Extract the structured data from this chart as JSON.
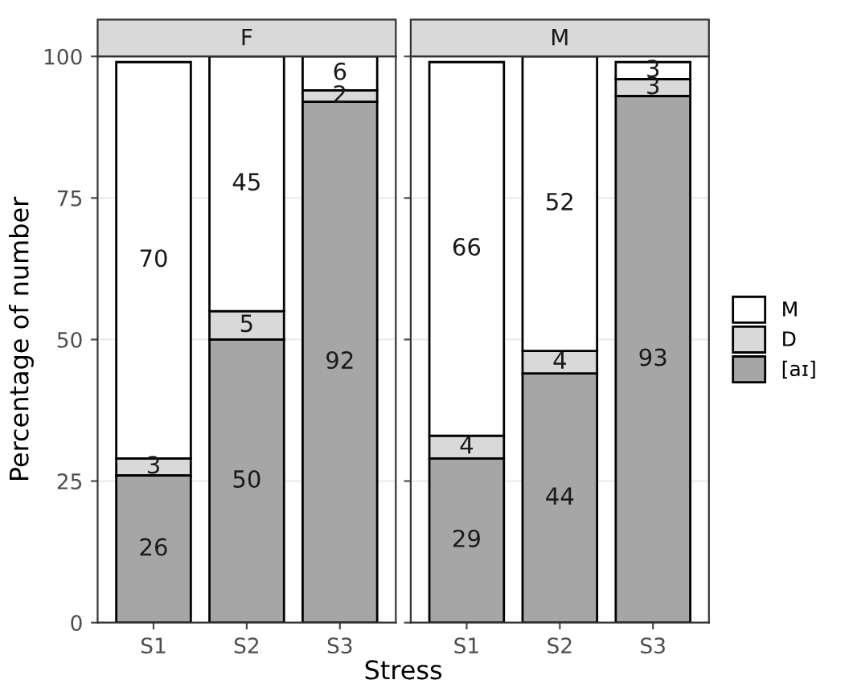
{
  "chart_data": [
    {
      "type": "bar",
      "title": "F",
      "stacked": true,
      "categories": [
        "S1",
        "S2",
        "S3"
      ],
      "ylabel": "Percentage of number",
      "xlabel": "Stress",
      "ylim": [
        0,
        100
      ],
      "yticks": [
        0,
        25,
        50,
        75,
        100
      ],
      "grid": true,
      "data_labels": true,
      "legend": false,
      "series": [
        {
          "color": "#a6a6a6",
          "values": [
            26,
            50,
            92
          ]
        },
        {
          "color": "#d9d9d9",
          "values": [
            3,
            5,
            2
          ]
        },
        {
          "color": "#ffffff",
          "values": [
            70,
            45,
            6
          ]
        }
      ]
    },
    {
      "type": "bar",
      "title": "M",
      "stacked": true,
      "categories": [
        "S1",
        "S2",
        "S3"
      ],
      "ylim": [
        0,
        100
      ],
      "yticks": [
        0,
        25,
        50,
        75,
        100
      ],
      "grid": true,
      "data_labels": true,
      "legend": "right",
      "tick_labels": "x",
      "series": [
        {
          "name": "[aɪ]",
          "color": "#a6a6a6",
          "values": [
            29,
            44,
            93
          ]
        },
        {
          "name": "D",
          "color": "#d9d9d9",
          "values": [
            4,
            4,
            3
          ]
        },
        {
          "name": "M",
          "color": "#ffffff",
          "values": [
            66,
            52,
            3
          ]
        }
      ]
    }
  ]
}
